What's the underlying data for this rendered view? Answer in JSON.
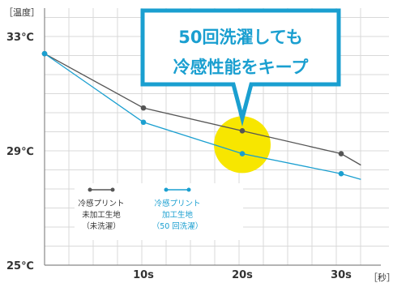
{
  "colors": {
    "untreated": "#555555",
    "treated": "#1a9fd0",
    "highlight": "#f7e600",
    "callout_border": "#1a9fd0",
    "grid": "#d9d9d9",
    "axis": "#888888"
  },
  "chart_data": {
    "type": "line",
    "title": "",
    "ylabel": "［温度］",
    "xlabel": "［秒］",
    "ylim": [
      25,
      33
    ],
    "xlim": [
      0,
      32
    ],
    "yticks": [
      {
        "value": 33,
        "label": "33℃"
      },
      {
        "value": 29,
        "label": "29℃"
      },
      {
        "value": 25,
        "label": "25℃"
      }
    ],
    "xticks": [
      {
        "value": 10,
        "label": "10s"
      },
      {
        "value": 20,
        "label": "20s"
      },
      {
        "value": 30,
        "label": "30s"
      }
    ],
    "grid": true,
    "legend_position": "bottom-left",
    "series": [
      {
        "name": "冷感プリント\n未加工生地\n（未洗濯）",
        "color": "#555555",
        "x": [
          0,
          10,
          20,
          30,
          32
        ],
        "y": [
          32.4,
          30.5,
          29.7,
          28.9,
          28.5
        ]
      },
      {
        "name": "冷感プリント\n加工生地\n（50 回洗濯）",
        "color": "#1a9fd0",
        "x": [
          0,
          10,
          20,
          30,
          32
        ],
        "y": [
          32.4,
          30.0,
          28.9,
          28.2,
          28.0
        ]
      }
    ],
    "annotations": [
      {
        "text_lines": [
          "50回洗濯しても",
          "冷感性能をキープ"
        ],
        "target_x": 20,
        "target_y": 29.3
      }
    ]
  }
}
